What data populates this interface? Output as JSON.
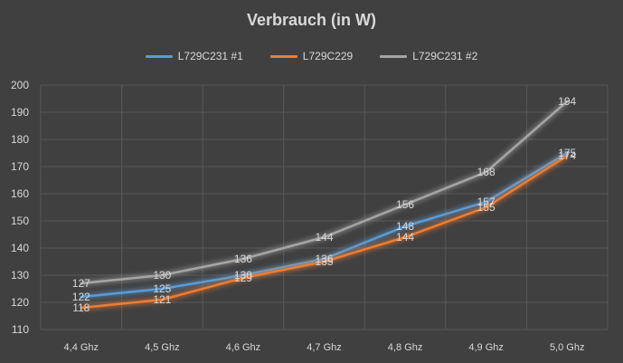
{
  "chart_data": {
    "type": "line",
    "title": "Verbrauch (in W)",
    "categories": [
      "4,4 Ghz",
      "4,5 Ghz",
      "4,6 Ghz",
      "4,7 Ghz",
      "4,8 Ghz",
      "4,9 Ghz",
      "5,0 Ghz"
    ],
    "series": [
      {
        "name": "L729C231 #1",
        "color": "#5b9bd5",
        "values": [
          122,
          125,
          130,
          136,
          148,
          157,
          175
        ]
      },
      {
        "name": "L729C229",
        "color": "#ed7d31",
        "values": [
          118,
          121,
          129,
          135,
          144,
          155,
          174
        ]
      },
      {
        "name": "L729C231 #2",
        "color": "#a5a5a5",
        "values": [
          127,
          130,
          136,
          144,
          156,
          168,
          194
        ]
      }
    ],
    "ylim": [
      110,
      200
    ],
    "yticks": [
      110,
      120,
      130,
      140,
      150,
      160,
      170,
      180,
      190,
      200
    ],
    "grid": true,
    "legend_position": "top"
  }
}
